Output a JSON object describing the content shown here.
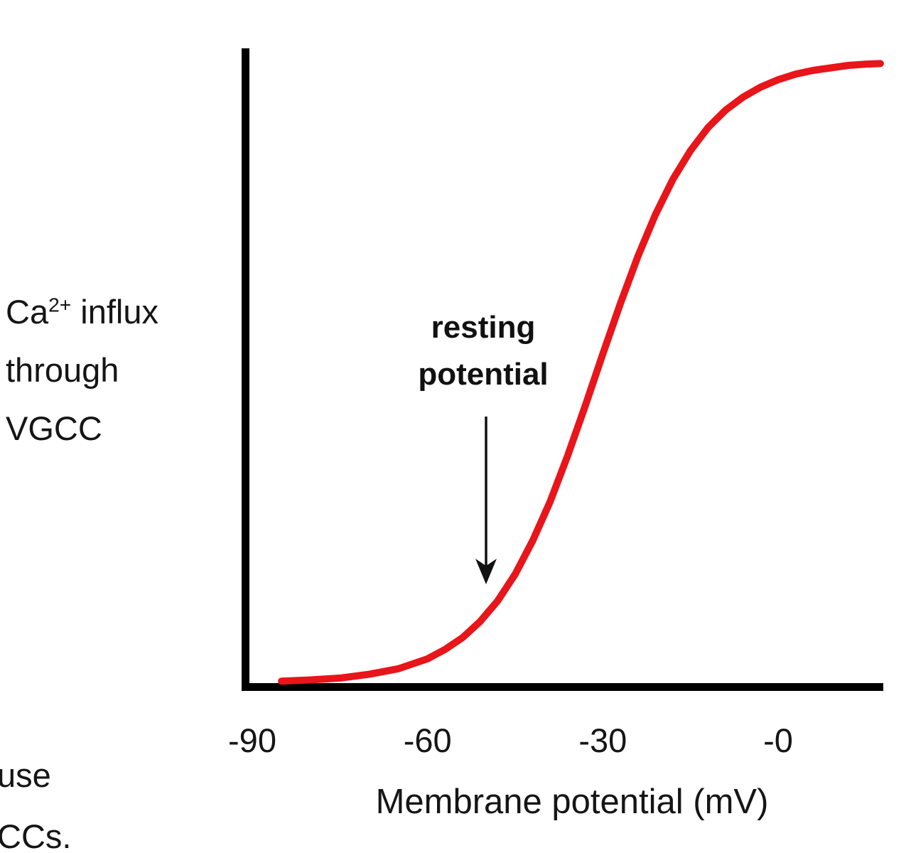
{
  "figure": {
    "background": "#ffffff",
    "axis_color": "#000000",
    "curve_color": "#e8151a",
    "text_color": "#151515"
  },
  "y_axis_label": {
    "prefix": "Ca",
    "sup": "2+",
    "rest": " influx",
    "line2": "through",
    "line3": "VGCC"
  },
  "annotation": {
    "text": "resting\npotential",
    "points_to_mV": -50
  },
  "x_axis_label": "Membrane potential (mV)",
  "cutoff_text": "use\nCCs.",
  "chart_data": {
    "type": "line",
    "title": "",
    "xlabel": "Membrane potential (mV)",
    "ylabel": "Ca2+ influx through VGCC",
    "xlim": [
      -91,
      18
    ],
    "ylim": [
      0,
      1
    ],
    "grid": false,
    "legend": false,
    "x_ticks": [
      {
        "value": -90,
        "label": "-90"
      },
      {
        "value": -60,
        "label": "-60"
      },
      {
        "value": -30,
        "label": "-30"
      },
      {
        "value": 0,
        "label": "-0"
      }
    ],
    "series": [
      {
        "name": "Ca2+ influx through VGCC (relative)",
        "color": "#e8151a",
        "x": [
          -85,
          -80,
          -75,
          -70,
          -65,
          -60,
          -57,
          -54,
          -51,
          -48,
          -45,
          -42,
          -39,
          -36,
          -33,
          -30,
          -27,
          -24,
          -21,
          -18,
          -15,
          -12,
          -9,
          -6,
          -3,
          0,
          3,
          6,
          9,
          12,
          15,
          17.5
        ],
        "y": [
          0.002,
          0.004,
          0.007,
          0.013,
          0.022,
          0.038,
          0.053,
          0.072,
          0.098,
          0.131,
          0.174,
          0.228,
          0.291,
          0.365,
          0.445,
          0.528,
          0.609,
          0.685,
          0.752,
          0.809,
          0.855,
          0.892,
          0.92,
          0.941,
          0.957,
          0.969,
          0.978,
          0.984,
          0.988,
          0.992,
          0.994,
          0.995
        ]
      }
    ],
    "annotations": [
      {
        "text": "resting potential",
        "arrow_target_x_mV": -50
      }
    ]
  }
}
